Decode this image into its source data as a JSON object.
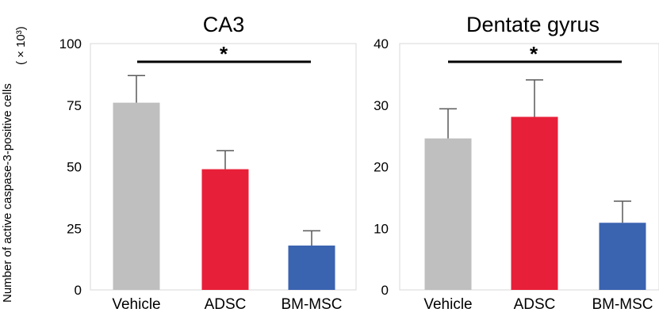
{
  "figure": {
    "ylabel_line1": "Number of  active caspase-3-positive cells",
    "ylabel_line2": "( × 10³)"
  },
  "chart_data": [
    {
      "type": "bar",
      "title": "CA3",
      "categories": [
        "Vehicle",
        "ADSC",
        "BM-MSC"
      ],
      "values": [
        76,
        49,
        18
      ],
      "error_upper": [
        87,
        56.5,
        24
      ],
      "colors": [
        "#bfbfbf",
        "#e81f38",
        "#3a63b0"
      ],
      "ylim": [
        0,
        100
      ],
      "yticks": [
        0,
        25,
        50,
        75,
        100
      ],
      "ytick_labels": [
        "0",
        "25",
        "50",
        "75",
        "100"
      ],
      "significance": {
        "from": "Vehicle",
        "to": "BM-MSC",
        "label": "*"
      },
      "grid": false
    },
    {
      "type": "bar",
      "title": "Dentate gyrus",
      "categories": [
        "Vehicle",
        "ADSC",
        "BM-MSC"
      ],
      "values": [
        24.6,
        28.1,
        10.9
      ],
      "error_upper": [
        29.4,
        34.1,
        14.4
      ],
      "colors": [
        "#bfbfbf",
        "#e81f38",
        "#3a63b0"
      ],
      "ylim": [
        0,
        40
      ],
      "yticks": [
        0,
        10,
        20,
        30,
        40
      ],
      "ytick_labels": [
        "0",
        "10",
        "20",
        "30",
        "40"
      ],
      "significance": {
        "from": "Vehicle",
        "to": "BM-MSC",
        "label": "*"
      },
      "grid": false
    }
  ]
}
